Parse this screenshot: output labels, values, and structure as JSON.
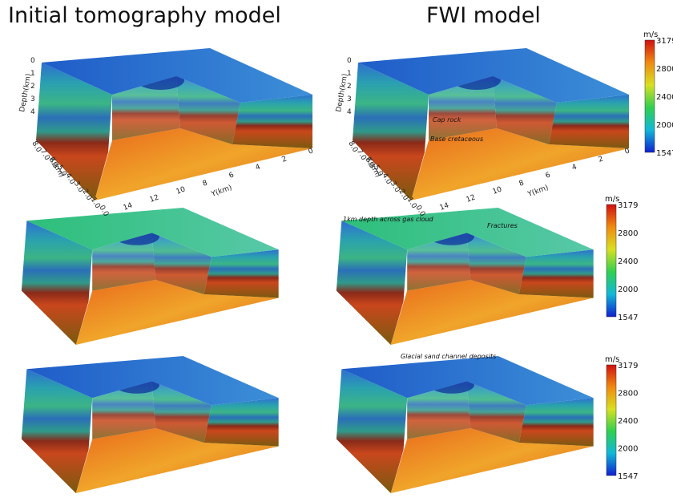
{
  "titles": [
    "Initial tomography model",
    "FWI model"
  ],
  "axes": {
    "depth_label": "Depth(km)",
    "depth_ticks": [
      "0",
      "1",
      "2",
      "3",
      "4"
    ],
    "x_label": "X(km)",
    "x_ticks": [
      "8.0",
      "7.0",
      "6.0",
      "5.0",
      "4.0",
      "3.0",
      "2.0",
      "1.0",
      "0.0"
    ],
    "y_label": "Y(km)",
    "y_ticks": [
      "14",
      "12",
      "10",
      "8",
      "6",
      "4",
      "2",
      "0"
    ]
  },
  "colorbar": {
    "unit": "m/s",
    "ticks": [
      "3179",
      "2800",
      "2400",
      "2000",
      "1547"
    ]
  },
  "annotations": [
    "Cap rock",
    "Base cretaceous",
    "1km depth across gas cloud",
    "Fractures",
    "Glacial sand channel deposits"
  ]
}
